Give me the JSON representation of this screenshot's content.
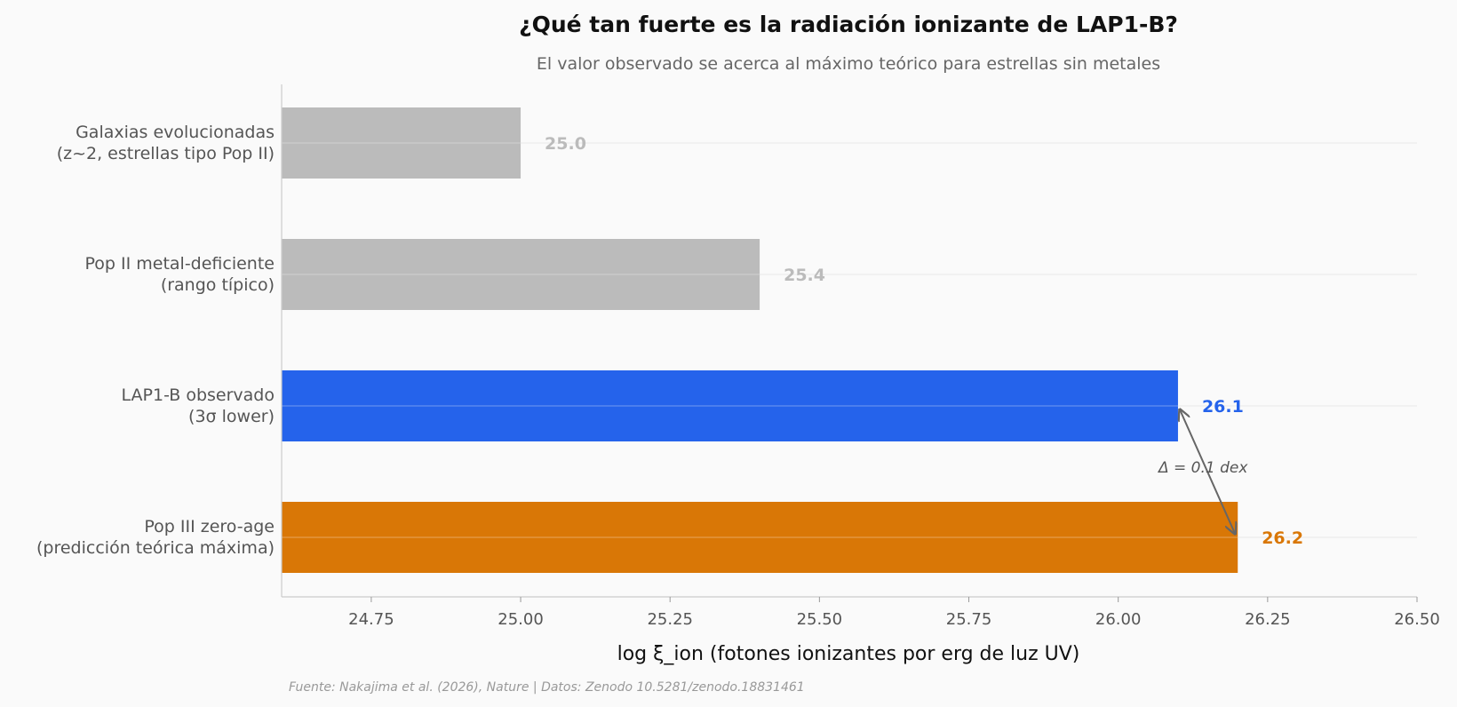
{
  "chart_data": {
    "type": "bar",
    "orientation": "horizontal",
    "title": "¿Qué tan fuerte es la radiación ionizante de LAP1-B?",
    "subtitle": "El valor observado se acerca al máximo teórico para estrellas sin metales",
    "xlabel": "log ξ_ion  (fotones ionizantes por erg de luz UV)",
    "xlim": [
      24.6,
      26.5
    ],
    "xticks": [
      "24.75",
      "25.00",
      "25.25",
      "25.50",
      "25.75",
      "26.00",
      "26.25",
      "26.50"
    ],
    "categories": [
      {
        "line1": "Galaxias evolucionadas",
        "line2": "(z~2, estrellas tipo Pop II)",
        "value": 25.0,
        "label": "25.0",
        "color": "#bbbbbb"
      },
      {
        "line1": "Pop II metal-deficiente",
        "line2": "(rango típico)",
        "value": 25.4,
        "label": "25.4",
        "color": "#bbbbbb"
      },
      {
        "line1": "LAP1-B observado",
        "line2": "(3σ lower)",
        "value": 26.1,
        "label": "26.1",
        "color": "#2563eb"
      },
      {
        "line1": "Pop III zero-age",
        "line2": "(predicción teórica máxima)",
        "value": 26.2,
        "label": "26.2",
        "color": "#d97706"
      }
    ],
    "annotation": {
      "text": "Δ = 0.1 dex",
      "from_value": 26.2,
      "to_value": 26.1
    },
    "source": "Fuente: Nakajima et al. (2026), Nature | Datos: Zenodo 10.5281/zenodo.18831461",
    "grid": "horizontal, light"
  }
}
